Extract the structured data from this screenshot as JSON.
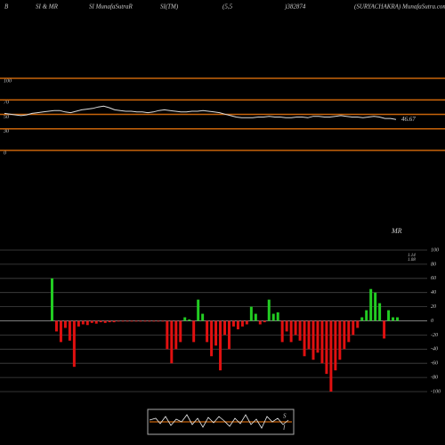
{
  "header": [
    "B",
    "SI & MR",
    "SI MunafaSutraR",
    "SI(TM)",
    "(5,5",
    ")382874",
    "(SURYACHAKRA) MunafaSutra.com"
  ],
  "chart_data": [
    {
      "type": "line",
      "ylim": [
        0,
        100
      ],
      "yticks": [
        100,
        70,
        50,
        30,
        0
      ],
      "grid": true,
      "grid_color": "#c8640a",
      "color": "#dddddd",
      "values": [
        55,
        54,
        53,
        52,
        53,
        55,
        56,
        57,
        58,
        59,
        59,
        57,
        56,
        58,
        60,
        61,
        62,
        64,
        65,
        63,
        60,
        59,
        58,
        58,
        57,
        57,
        56,
        57,
        59,
        60,
        59,
        58,
        57,
        57,
        58,
        58,
        59,
        58,
        57,
        56,
        54,
        52,
        50,
        49,
        49,
        49,
        50,
        50,
        51,
        50,
        50,
        49,
        49,
        50,
        50,
        49,
        51,
        51,
        50,
        50,
        51,
        52,
        51,
        50,
        50,
        49,
        50,
        51,
        50,
        48,
        48,
        46.67
      ]
    },
    {
      "type": "bar",
      "title": "MR",
      "annotations": [
        "1.14",
        "1.08"
      ],
      "ylim": [
        -100,
        100
      ],
      "yticks": [
        100,
        80,
        60,
        40,
        20,
        0,
        -20,
        -40,
        -60,
        -80,
        -100
      ],
      "grid": true,
      "positive_color": "#22cc22",
      "negative_color": "#e01010",
      "values": [
        60,
        -15,
        -30,
        -10,
        -28,
        -65,
        -8,
        -5,
        -6,
        -3,
        -4,
        -2,
        -3,
        -2,
        -2,
        -1,
        -1,
        -1,
        -1,
        -1,
        -1,
        -1,
        -1,
        -1,
        -1,
        -1,
        -40,
        -60,
        -40,
        -30,
        5,
        2,
        -30,
        30,
        10,
        -30,
        -50,
        -35,
        -70,
        -20,
        -40,
        -8,
        -12,
        -8,
        -5,
        20,
        10,
        -5,
        -2,
        30,
        10,
        12,
        -30,
        -15,
        -30,
        -20,
        -28,
        -50,
        -40,
        -55,
        -45,
        -60,
        -75,
        -100,
        -70,
        -55,
        -40,
        -30,
        -20,
        -10,
        5,
        15,
        45,
        40,
        25,
        -25,
        15,
        5,
        5
      ]
    }
  ],
  "navigator": {
    "labels": [
      "S",
      "I"
    ]
  }
}
